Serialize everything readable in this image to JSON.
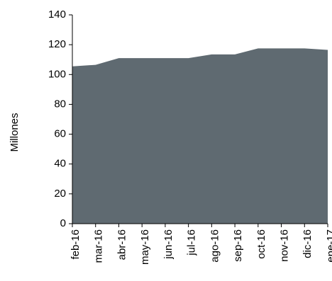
{
  "chart_data": {
    "type": "area",
    "title": "",
    "xlabel": "",
    "ylabel": "Millones",
    "ylim": [
      0,
      140
    ],
    "yticks": [
      0,
      20,
      40,
      60,
      80,
      100,
      120,
      140
    ],
    "categories": [
      "feb-16",
      "mar-16",
      "abr-16",
      "may-16",
      "jun-16",
      "jul-16",
      "ago-16",
      "sep-16",
      "oct-16",
      "nov-16",
      "dic-16",
      "ene-17"
    ],
    "series": [
      {
        "values": [
          105.5,
          106.5,
          111,
          111,
          111,
          111,
          113.5,
          113.5,
          117.5,
          117.5,
          117.5,
          116.5
        ]
      }
    ],
    "grid": false,
    "legend": "none",
    "colors": {
      "area": "#5f6a71",
      "axis": "#000000"
    }
  }
}
